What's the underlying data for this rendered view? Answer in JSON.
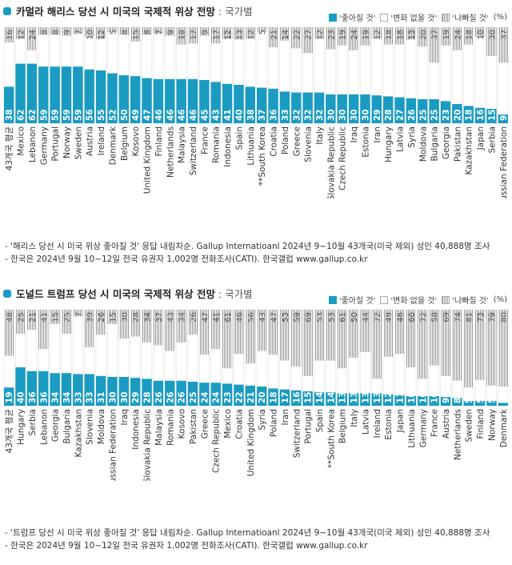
{
  "panels": [
    {
      "title": "카멀라 해리스 당선 시 미국의 국제적 위상 전망",
      "title_suffix": ": 국가별",
      "legend": [
        "'좋아질 것'",
        "'변화 없을 것'",
        "'나빠질 것'"
      ],
      "unit": "(%)",
      "notes": [
        "- '해리스 당선 시 미국 위상 좋아질 것' 응답 내림차순. Gallup Internatioanl 2024년 9~10월 43개국(미국 제외) 성인 40,888명 조사",
        "- 한국은 2024년 9월 10~12일 전국 유권자 1,002명 전화조사(CATI). 한국갤럽 www.gallup.co.kr"
      ]
    },
    {
      "title": "도널드 트럼프 당선 시 미국의 국제적 위상 전망",
      "title_suffix": ": 국가별",
      "legend": [
        "'좋아질 것'",
        "'변화 없을 것'",
        "'나빠질 것'"
      ],
      "unit": "(%)",
      "notes": [
        "- '트럼프 당선 시 미국 위상 좋아질 것' 응답 내림차순. Gallup Internatioanl 2024년 9~10월 43개국(미국 제외) 성인 40,888명 조사",
        "- 한국은 2024년 9월 10~12일 전국 유권자 1,002명 전화조사(CATI). 한국갤럽 www.gallup.co.kr"
      ]
    }
  ],
  "colors": {
    "better": "#1a9cc2",
    "same": "#ffffff",
    "worse": "#9a9a9a",
    "grid_border": "#aaaaaa"
  },
  "chart_data": [
    {
      "type": "bar",
      "stacked": true,
      "title": "카멀라 해리스 당선 시 미국의 국제적 위상 전망: 국가별",
      "ylim": [
        0,
        100
      ],
      "categories": [
        "43개국 평균",
        "Mexico",
        "Lebanon",
        "Germany",
        "Portugal",
        "Norway",
        "Sweden",
        "Austria",
        "Ireland",
        "Denmark",
        "Belgium",
        "Kosovo",
        "United Kingdom",
        "Finland",
        "Netherlands",
        "Malaysia",
        "Switzerland",
        "France",
        "Romania",
        "Indonesia",
        "Spain",
        "Lithuania",
        "**South Korea",
        "Croatia",
        "Poland",
        "Greece",
        "Slovenia",
        "Italy",
        "Slovakia Republic",
        "Czech Republic",
        "Iraq",
        "Estonia",
        "Iran",
        "Hungary",
        "Latvia",
        "Syria",
        "Moldova",
        "Bulgaria",
        "Georgia",
        "Pakistan",
        "Kazakhstan",
        "Japan",
        "Serbia",
        "Russian Federation"
      ],
      "series": [
        {
          "name": "'좋아질 것'",
          "values": [
            38,
            62,
            62,
            59,
            59,
            59,
            59,
            56,
            55,
            52,
            50,
            49,
            47,
            46,
            46,
            46,
            46,
            45,
            43,
            41,
            40,
            38,
            37,
            36,
            33,
            32,
            32,
            32,
            30,
            30,
            30,
            30,
            29,
            28,
            27,
            26,
            25,
            25,
            23,
            20,
            18,
            16,
            15,
            9
          ]
        },
        {
          "name": "'나빠질 것'",
          "values": [
            16,
            12,
            24,
            8,
            8,
            9,
            7,
            10,
            12,
            5,
            8,
            15,
            8,
            7,
            9,
            18,
            17,
            9,
            17,
            12,
            13,
            12,
            5,
            21,
            14,
            22,
            27,
            12,
            23,
            19,
            24,
            19,
            12,
            18,
            18,
            13,
            20,
            37,
            19,
            24,
            18,
            10,
            30,
            37
          ]
        }
      ]
    },
    {
      "type": "bar",
      "stacked": true,
      "title": "도널드 트럼프 당선 시 미국의 국제적 위상 전망: 국가별",
      "ylim": [
        0,
        100
      ],
      "categories": [
        "43개국 평균",
        "Hungary",
        "Serbia",
        "Lebanon",
        "Georgia",
        "Bulgaria",
        "Kazakhstan",
        "Slovenia",
        "Moldova",
        "Russian Federation",
        "Iraq",
        "Indonesia",
        "Slovakia Republic",
        "Malaysia",
        "Romania",
        "Kosovo",
        "Pakistan",
        "Greece",
        "Czech Republic",
        "Mexico",
        "Croatia",
        "United Kingdom",
        "Syria",
        "Poland",
        "Iran",
        "Switzerland",
        "Portugal",
        "Spain",
        "**South Korea",
        "Belgium",
        "Italy",
        "Latvia",
        "Ireland",
        "Estonia",
        "Japan",
        "Lithuania",
        "Germany",
        "France",
        "Austria",
        "Netherlands",
        "Sweden",
        "Finland",
        "Norway",
        "Denmark"
      ],
      "series": [
        {
          "name": "'좋아질 것'",
          "values": [
            19,
            40,
            36,
            36,
            34,
            34,
            33,
            33,
            31,
            30,
            30,
            29,
            28,
            26,
            26,
            26,
            25,
            24,
            24,
            23,
            22,
            21,
            20,
            18,
            17,
            16,
            15,
            14,
            14,
            13,
            13,
            13,
            13,
            12,
            11,
            10,
            10,
            10,
            9,
            8,
            5,
            5,
            5,
            3
          ]
        },
        {
          "name": "'나빠질 것'",
          "values": [
            48,
            25,
            21,
            41,
            15,
            25,
            7,
            39,
            26,
            15,
            30,
            28,
            34,
            37,
            43,
            34,
            26,
            47,
            41,
            61,
            46,
            56,
            43,
            47,
            53,
            59,
            69,
            53,
            53,
            61,
            50,
            44,
            72,
            49,
            46,
            60,
            72,
            58,
            69,
            74,
            81,
            73,
            79,
            80
          ]
        }
      ]
    }
  ]
}
